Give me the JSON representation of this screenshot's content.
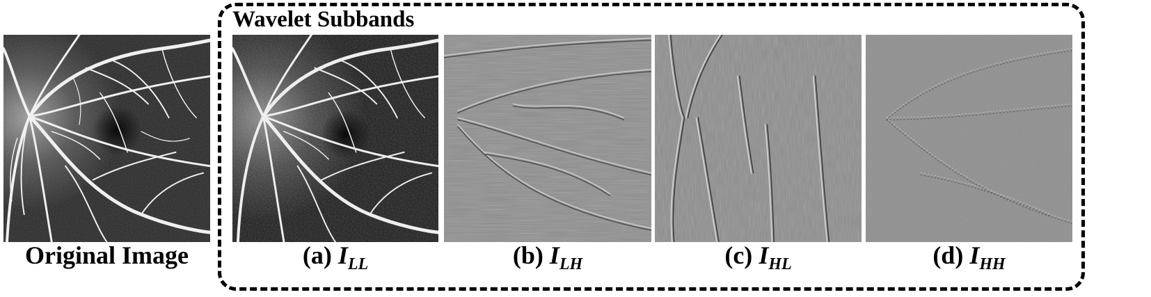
{
  "figure": {
    "section_title": "Wavelet Subbands",
    "original": {
      "caption": "Original Image",
      "icon": "retina-oct-angiography-image"
    },
    "subbands": [
      {
        "letter": "(a)",
        "var": "I",
        "sub": "LL",
        "icon": "ll-subband-image"
      },
      {
        "letter": "(b)",
        "var": "I",
        "sub": "LH",
        "icon": "lh-subband-image"
      },
      {
        "letter": "(c)",
        "var": "I",
        "sub": "HL",
        "icon": "hl-subband-image"
      },
      {
        "letter": "(d)",
        "var": "I",
        "sub": "HH",
        "icon": "hh-subband-image"
      }
    ],
    "colors": {
      "border": "#000000",
      "dark_background": "#1c1c1c",
      "vessel": "#f2f2f2",
      "detail_background": "#8c8c8c"
    }
  }
}
